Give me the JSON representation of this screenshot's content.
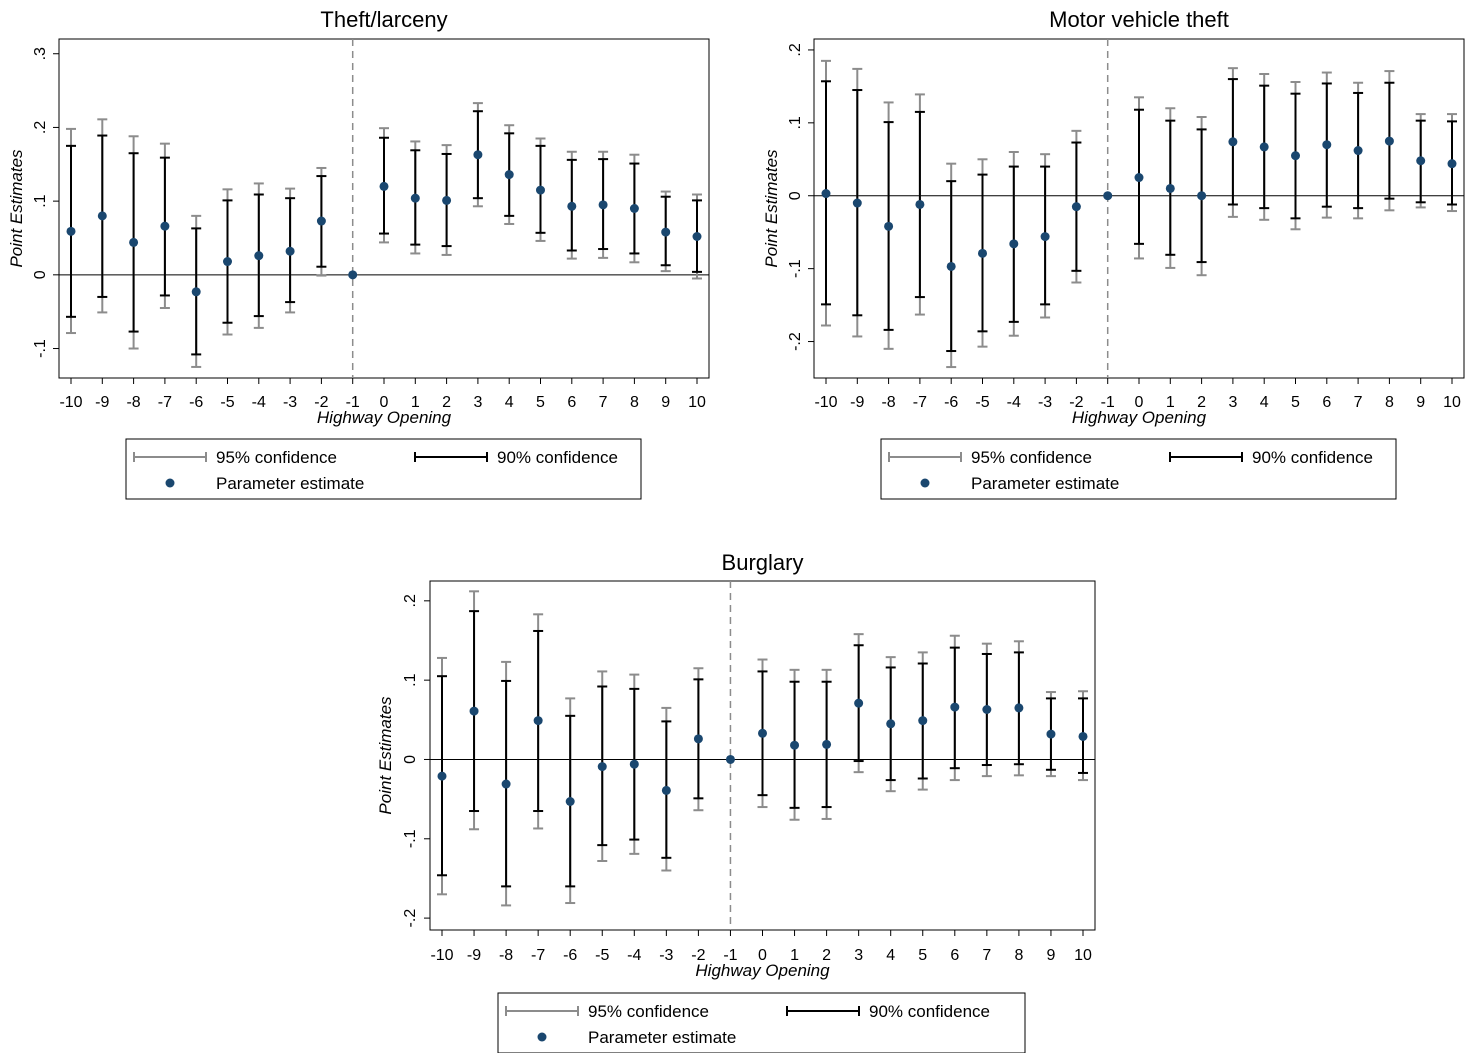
{
  "legend": {
    "ci95_label": "95% confidence",
    "ci90_label": "90% confidence",
    "estimate_label": "Parameter estimate"
  },
  "colors": {
    "ci95": "#8c8c8c",
    "ci90": "#000000",
    "point": "#1a476f",
    "zero_line": "#000000",
    "event_line": "#8c8c8c"
  },
  "chart_data": [
    {
      "type": "scatter",
      "title": "Theft/larceny",
      "xlabel": "Highway Opening",
      "ylabel": "Point Estimates",
      "x": [
        -10,
        -9,
        -8,
        -7,
        -6,
        -5,
        -4,
        -3,
        -2,
        -1,
        0,
        1,
        2,
        3,
        4,
        5,
        6,
        7,
        8,
        9,
        10
      ],
      "xticks": [
        "-10",
        "-9",
        "-8",
        "-7",
        "-6",
        "-5",
        "-4",
        "-3",
        "-2",
        "-1",
        "0",
        "1",
        "2",
        "3",
        "4",
        "5",
        "6",
        "7",
        "8",
        "9",
        "10"
      ],
      "yticks": [
        {
          "v": 0.3,
          "label": ".3"
        },
        {
          "v": 0.2,
          "label": ".2"
        },
        {
          "v": 0.1,
          "label": ".1"
        },
        {
          "v": 0,
          "label": "0"
        },
        {
          "v": -0.1,
          "label": "-.1"
        }
      ],
      "ylim": [
        -0.14,
        0.32
      ],
      "event_line_x": -1,
      "grid": false,
      "legend_position": "bottom",
      "estimate": [
        0.059,
        0.08,
        0.044,
        0.066,
        -0.023,
        0.018,
        0.026,
        0.032,
        0.073,
        0.0,
        0.12,
        0.104,
        0.101,
        0.163,
        0.136,
        0.115,
        0.093,
        0.095,
        0.09,
        0.058,
        0.052
      ],
      "ci90_low": [
        -0.057,
        -0.03,
        -0.077,
        -0.028,
        -0.108,
        -0.065,
        -0.056,
        -0.037,
        0.011,
        0.0,
        0.056,
        0.041,
        0.039,
        0.104,
        0.08,
        0.057,
        0.033,
        0.035,
        0.029,
        0.013,
        0.004
      ],
      "ci90_high": [
        0.175,
        0.189,
        0.165,
        0.159,
        0.063,
        0.101,
        0.109,
        0.104,
        0.134,
        0.0,
        0.186,
        0.169,
        0.164,
        0.222,
        0.192,
        0.175,
        0.156,
        0.157,
        0.151,
        0.106,
        0.101
      ],
      "ci95_low": [
        -0.079,
        -0.051,
        -0.1,
        -0.045,
        -0.125,
        -0.081,
        -0.072,
        -0.051,
        -0.001,
        0.0,
        0.044,
        0.029,
        0.027,
        0.093,
        0.069,
        0.046,
        0.022,
        0.023,
        0.017,
        0.005,
        -0.005
      ],
      "ci95_high": [
        0.198,
        0.211,
        0.188,
        0.178,
        0.08,
        0.116,
        0.124,
        0.117,
        0.145,
        0.0,
        0.199,
        0.181,
        0.176,
        0.233,
        0.203,
        0.185,
        0.167,
        0.167,
        0.163,
        0.113,
        0.109
      ]
    },
    {
      "type": "scatter",
      "title": "Motor vehicle theft",
      "xlabel": "Highway Opening",
      "ylabel": "Point Estimates",
      "x": [
        -10,
        -9,
        -8,
        -7,
        -6,
        -5,
        -4,
        -3,
        -2,
        -1,
        0,
        1,
        2,
        3,
        4,
        5,
        6,
        7,
        8,
        9,
        10
      ],
      "xticks": [
        "-10",
        "-9",
        "-8",
        "-7",
        "-6",
        "-5",
        "-4",
        "-3",
        "-2",
        "-1",
        "0",
        "1",
        "2",
        "3",
        "4",
        "5",
        "6",
        "7",
        "8",
        "9",
        "10"
      ],
      "yticks": [
        {
          "v": 0.2,
          "label": ".2"
        },
        {
          "v": 0.1,
          "label": ".1"
        },
        {
          "v": 0,
          "label": "0"
        },
        {
          "v": -0.1,
          "label": "-.1"
        },
        {
          "v": -0.2,
          "label": "-.2"
        }
      ],
      "ylim": [
        -0.25,
        0.215
      ],
      "event_line_x": -1,
      "grid": false,
      "legend_position": "bottom",
      "estimate": [
        0.003,
        -0.01,
        -0.042,
        -0.012,
        -0.097,
        -0.079,
        -0.066,
        -0.056,
        -0.015,
        0.0,
        0.025,
        0.01,
        0.0,
        0.074,
        0.067,
        0.055,
        0.07,
        0.062,
        0.075,
        0.048,
        0.044
      ],
      "ci90_low": [
        -0.149,
        -0.164,
        -0.184,
        -0.139,
        -0.213,
        -0.186,
        -0.173,
        -0.149,
        -0.103,
        0.0,
        -0.066,
        -0.081,
        -0.091,
        -0.012,
        -0.017,
        -0.031,
        -0.015,
        -0.017,
        -0.004,
        -0.009,
        -0.012
      ],
      "ci90_high": [
        0.157,
        0.145,
        0.101,
        0.115,
        0.02,
        0.029,
        0.04,
        0.04,
        0.073,
        0.0,
        0.118,
        0.103,
        0.091,
        0.16,
        0.151,
        0.14,
        0.154,
        0.141,
        0.155,
        0.103,
        0.102
      ],
      "ci95_low": [
        -0.178,
        -0.193,
        -0.21,
        -0.163,
        -0.235,
        -0.207,
        -0.192,
        -0.167,
        -0.119,
        0.0,
        -0.086,
        -0.099,
        -0.109,
        -0.029,
        -0.033,
        -0.046,
        -0.03,
        -0.031,
        -0.02,
        -0.016,
        -0.021
      ],
      "ci95_high": [
        0.185,
        0.174,
        0.128,
        0.139,
        0.044,
        0.05,
        0.06,
        0.057,
        0.089,
        0.0,
        0.135,
        0.12,
        0.108,
        0.175,
        0.167,
        0.156,
        0.169,
        0.155,
        0.171,
        0.112,
        0.112
      ]
    },
    {
      "type": "scatter",
      "title": "Burglary",
      "xlabel": "Highway Opening",
      "ylabel": "Point Estimates",
      "x": [
        -10,
        -9,
        -8,
        -7,
        -6,
        -5,
        -4,
        -3,
        -2,
        -1,
        0,
        1,
        2,
        3,
        4,
        5,
        6,
        7,
        8,
        9,
        10
      ],
      "xticks": [
        "-10",
        "-9",
        "-8",
        "-7",
        "-6",
        "-5",
        "-4",
        "-3",
        "-2",
        "-1",
        "0",
        "1",
        "2",
        "3",
        "4",
        "5",
        "6",
        "7",
        "8",
        "9",
        "10"
      ],
      "yticks": [
        {
          "v": 0.2,
          "label": ".2"
        },
        {
          "v": 0.1,
          "label": ".1"
        },
        {
          "v": 0,
          "label": "0"
        },
        {
          "v": -0.1,
          "label": "-.1"
        },
        {
          "v": -0.2,
          "label": "-.2"
        }
      ],
      "ylim": [
        -0.215,
        0.225
      ],
      "event_line_x": -1,
      "grid": false,
      "legend_position": "bottom",
      "estimate": [
        -0.021,
        0.061,
        -0.031,
        0.049,
        -0.053,
        -0.009,
        -0.006,
        -0.039,
        0.026,
        0.0,
        0.033,
        0.018,
        0.019,
        0.071,
        0.045,
        0.049,
        0.066,
        0.063,
        0.065,
        0.032,
        0.029
      ],
      "ci90_low": [
        -0.146,
        -0.065,
        -0.16,
        -0.065,
        -0.16,
        -0.108,
        -0.101,
        -0.124,
        -0.049,
        0.0,
        -0.045,
        -0.061,
        -0.06,
        -0.002,
        -0.026,
        -0.024,
        -0.011,
        -0.007,
        -0.006,
        -0.013,
        -0.017
      ],
      "ci90_high": [
        0.105,
        0.187,
        0.099,
        0.162,
        0.055,
        0.092,
        0.089,
        0.048,
        0.101,
        0.0,
        0.111,
        0.098,
        0.098,
        0.144,
        0.116,
        0.121,
        0.141,
        0.133,
        0.135,
        0.077,
        0.077
      ],
      "ci95_low": [
        -0.17,
        -0.088,
        -0.184,
        -0.087,
        -0.181,
        -0.128,
        -0.119,
        -0.14,
        -0.064,
        0.0,
        -0.06,
        -0.076,
        -0.075,
        -0.016,
        -0.04,
        -0.038,
        -0.026,
        -0.021,
        -0.02,
        -0.021,
        -0.026
      ],
      "ci95_high": [
        0.128,
        0.212,
        0.123,
        0.183,
        0.077,
        0.111,
        0.107,
        0.065,
        0.115,
        0.0,
        0.126,
        0.113,
        0.113,
        0.158,
        0.129,
        0.135,
        0.156,
        0.146,
        0.149,
        0.085,
        0.086
      ]
    }
  ]
}
